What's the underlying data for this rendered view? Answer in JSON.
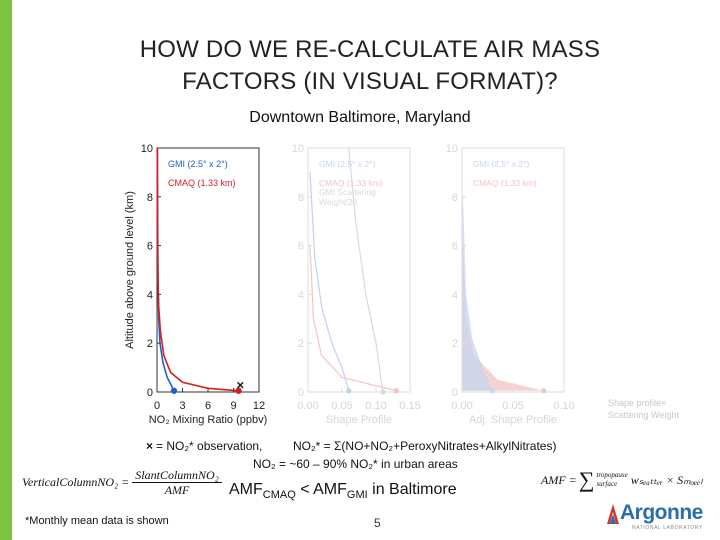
{
  "slide": {
    "title_line1": "HOW DO WE RE-CALCULATE AIR MASS",
    "title_line2": "FACTORS (IN VISUAL FORMAT)?",
    "subtitle": "Downtown Baltimore, Maryland",
    "accent_color": "#7dc242",
    "page_number": "5",
    "footnote": "*Monthly mean data is shown",
    "side_note_line1": "Shape profile×",
    "side_note_line2": "Scattering Weight",
    "obs_symbol": "×",
    "obs_text": "= NO₂* observation,",
    "no2_definition": "NO₂* = Σ(NO+NO₂+PeroxyNitrates+AlkylNitrates)",
    "urban_text": "NO₂ = ~60 – 90% NO₂* in urban areas",
    "amf_prefix": "AMF",
    "amf_sub1": "CMAQ",
    "amf_middle": " < AMF",
    "amf_sub2": "GMI",
    "amf_suffix": " in Baltimore",
    "formula_left_lhs": "VerticalColumnNO₂ =",
    "formula_left_num": "SlantColumnNO₂",
    "formula_left_den": "AMF",
    "formula_right_lhs": "AMF =",
    "formula_right_sum": "∑",
    "formula_right_upper": "tropopause",
    "formula_right_lower": "surface",
    "formula_right_rhs": "wₛₑₐₜₜₑᵣ × Sₘₒₑₑₗ",
    "logo_text": "Argonne",
    "logo_sub": "NATIONAL LABORATORY"
  },
  "chart_data": [
    {
      "type": "line",
      "xlabel": "NO₂ Mixing Ratio (ppbv)",
      "ylabel": "Altitude above ground level (km)",
      "xlim": [
        0,
        12
      ],
      "ylim": [
        0,
        10
      ],
      "xticks": [
        "0",
        "3",
        "6",
        "9",
        "12"
      ],
      "yticks": [
        "0",
        "2",
        "4",
        "6",
        "8",
        "10"
      ],
      "legend_position": "top-left",
      "series": [
        {
          "name": "GMI (2.5° x 2°)",
          "color": "#2060c8",
          "x": [
            2.0,
            1.2,
            0.7,
            0.35,
            0.2,
            0.12,
            0.08,
            0.05
          ],
          "y": [
            0.05,
            0.6,
            1.2,
            2.0,
            3.0,
            4.5,
            7.0,
            10.0
          ]
        },
        {
          "name": "CMAQ (1.33 km)",
          "color": "#d42020",
          "x": [
            9.6,
            6.0,
            3.0,
            1.6,
            0.8,
            0.4,
            0.2,
            0.1,
            0.05,
            0.03
          ],
          "y": [
            0.05,
            0.15,
            0.4,
            0.8,
            1.5,
            2.5,
            3.5,
            5.0,
            7.5,
            10.0
          ]
        }
      ],
      "observation": {
        "x": 9.8,
        "y": 0.1
      }
    },
    {
      "type": "line",
      "xlabel": "Shape Profile",
      "xlim": [
        0,
        0.15
      ],
      "ylim": [
        0,
        10
      ],
      "xticks": [
        "0.00",
        "0.05",
        "0.10",
        "0.15"
      ],
      "yticks": [
        "0",
        "2",
        "4",
        "6",
        "8",
        "10"
      ],
      "faded": true,
      "legend": [
        "GMI (2.5° x 2°)",
        "CMAQ (1.33 km)",
        "GMI Scattering",
        "Weight/20"
      ],
      "series": [
        {
          "color": "#bfd2ee",
          "x": [
            0.06,
            0.05,
            0.035,
            0.02,
            0.01,
            0.003
          ],
          "y": [
            0.05,
            1.0,
            2.0,
            3.5,
            5.5,
            9.0
          ]
        },
        {
          "color": "#f3c4c4",
          "x": [
            0.13,
            0.05,
            0.02,
            0.008,
            0.003
          ],
          "y": [
            0.05,
            0.6,
            1.5,
            3.0,
            6.0
          ]
        },
        {
          "color": "#d9d9d9",
          "x": [
            0.11,
            0.1,
            0.085,
            0.07,
            0.06
          ],
          "y": [
            0.0,
            2.0,
            4.0,
            7.0,
            10.0
          ]
        }
      ]
    },
    {
      "type": "area",
      "xlabel": "Adj. Shape Profile",
      "xlim": [
        0,
        0.1
      ],
      "ylim": [
        0,
        10
      ],
      "xticks": [
        "0.00",
        "0.05",
        "0.10"
      ],
      "yticks": [
        "0",
        "2",
        "4",
        "6",
        "8",
        "10"
      ],
      "faded": true,
      "legend": [
        "GMI (2.5° x 2°)",
        "CMAQ (1.33 km)"
      ],
      "series": [
        {
          "color": "#f3c4c4",
          "x": [
            0.08,
            0.035,
            0.012,
            0.004,
            0.001
          ],
          "y": [
            0.05,
            0.5,
            1.5,
            3.0,
            6.0
          ]
        },
        {
          "color": "#c5d6ef",
          "x": [
            0.03,
            0.02,
            0.01,
            0.004,
            0.001
          ],
          "y": [
            0.05,
            1.0,
            2.2,
            4.0,
            8.0
          ]
        }
      ]
    }
  ]
}
